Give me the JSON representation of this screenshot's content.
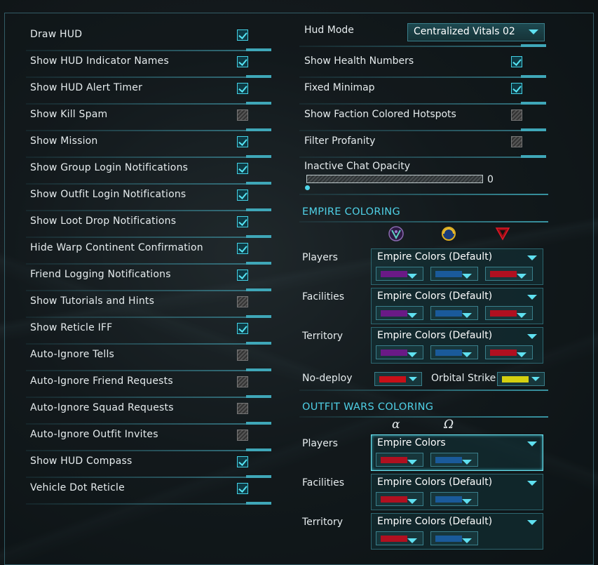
{
  "left_settings": [
    {
      "label": "Draw HUD",
      "checked": true
    },
    {
      "label": "Show HUD Indicator Names",
      "checked": true
    },
    {
      "label": "Show HUD Alert Timer",
      "checked": true
    },
    {
      "label": "Show Kill Spam",
      "checked": false
    },
    {
      "label": "Show Mission",
      "checked": true
    },
    {
      "label": "Show Group Login Notifications",
      "checked": true
    },
    {
      "label": "Show Outfit Login Notifications",
      "checked": true
    },
    {
      "label": "Show Loot Drop Notifications",
      "checked": true
    },
    {
      "label": "Hide Warp Continent Confirmation",
      "checked": true
    },
    {
      "label": "Friend Logging Notifications",
      "checked": true
    },
    {
      "label": "Show Tutorials and Hints",
      "checked": false
    },
    {
      "label": "Show Reticle IFF",
      "checked": true
    },
    {
      "label": "Auto-Ignore Tells",
      "checked": false
    },
    {
      "label": "Auto-Ignore Friend Requests",
      "checked": false
    },
    {
      "label": "Auto-Ignore Squad Requests",
      "checked": false
    },
    {
      "label": "Auto-Ignore Outfit Invites",
      "checked": false
    },
    {
      "label": "Show HUD Compass",
      "checked": true
    },
    {
      "label": "Vehicle Dot Reticle",
      "checked": true
    }
  ],
  "right_settings": {
    "hud_mode": {
      "label": "Hud Mode",
      "value": "Centralized Vitals 02"
    },
    "toggles": [
      {
        "label": "Show Health Numbers",
        "checked": true
      },
      {
        "label": "Fixed Minimap",
        "checked": true
      },
      {
        "label": "Show Faction Colored Hotspots",
        "checked": false
      },
      {
        "label": "Filter Profanity",
        "checked": false
      }
    ],
    "chat_opacity": {
      "label": "Inactive Chat Opacity",
      "value": "0",
      "fraction": 0
    }
  },
  "empire_coloring": {
    "title": "EMPIRE COLORING",
    "faction_icons": [
      "vs-icon",
      "nc-icon",
      "tr-icon"
    ],
    "groups": [
      {
        "label": "Players",
        "value": "Empire Colors (Default)",
        "swatches": [
          "#6a1a86",
          "#1a5a9a",
          "#b01020"
        ]
      },
      {
        "label": "Facilities",
        "value": "Empire Colors (Default)",
        "swatches": [
          "#6a1a86",
          "#1a5a9a",
          "#b01020"
        ]
      },
      {
        "label": "Territory",
        "value": "Empire Colors (Default)",
        "swatches": [
          "#6a1a86",
          "#1a5a9a",
          "#b01020"
        ]
      }
    ],
    "no_deploy": {
      "label": "No-deploy",
      "color": "#c81018"
    },
    "orbital_strike": {
      "label": "Orbital Strike",
      "color": "#d4d010"
    }
  },
  "outfit_wars_coloring": {
    "title": "OUTFIT WARS COLORING",
    "team_glyphs": [
      "α",
      "Ω"
    ],
    "groups": [
      {
        "label": "Players",
        "value": "Empire Colors",
        "swatches": [
          "#b01020",
          "#1a5a9a"
        ],
        "active": true
      },
      {
        "label": "Facilities",
        "value": "Empire Colors (Default)",
        "swatches": [
          "#b01020",
          "#1a5a9a"
        ],
        "active": false
      },
      {
        "label": "Territory",
        "value": "Empire Colors (Default)",
        "swatches": [
          "#b01020",
          "#1a5a9a"
        ],
        "active": false
      }
    ]
  },
  "colors": {
    "accent": "#4fd0e6",
    "check": "#55e3f2"
  }
}
